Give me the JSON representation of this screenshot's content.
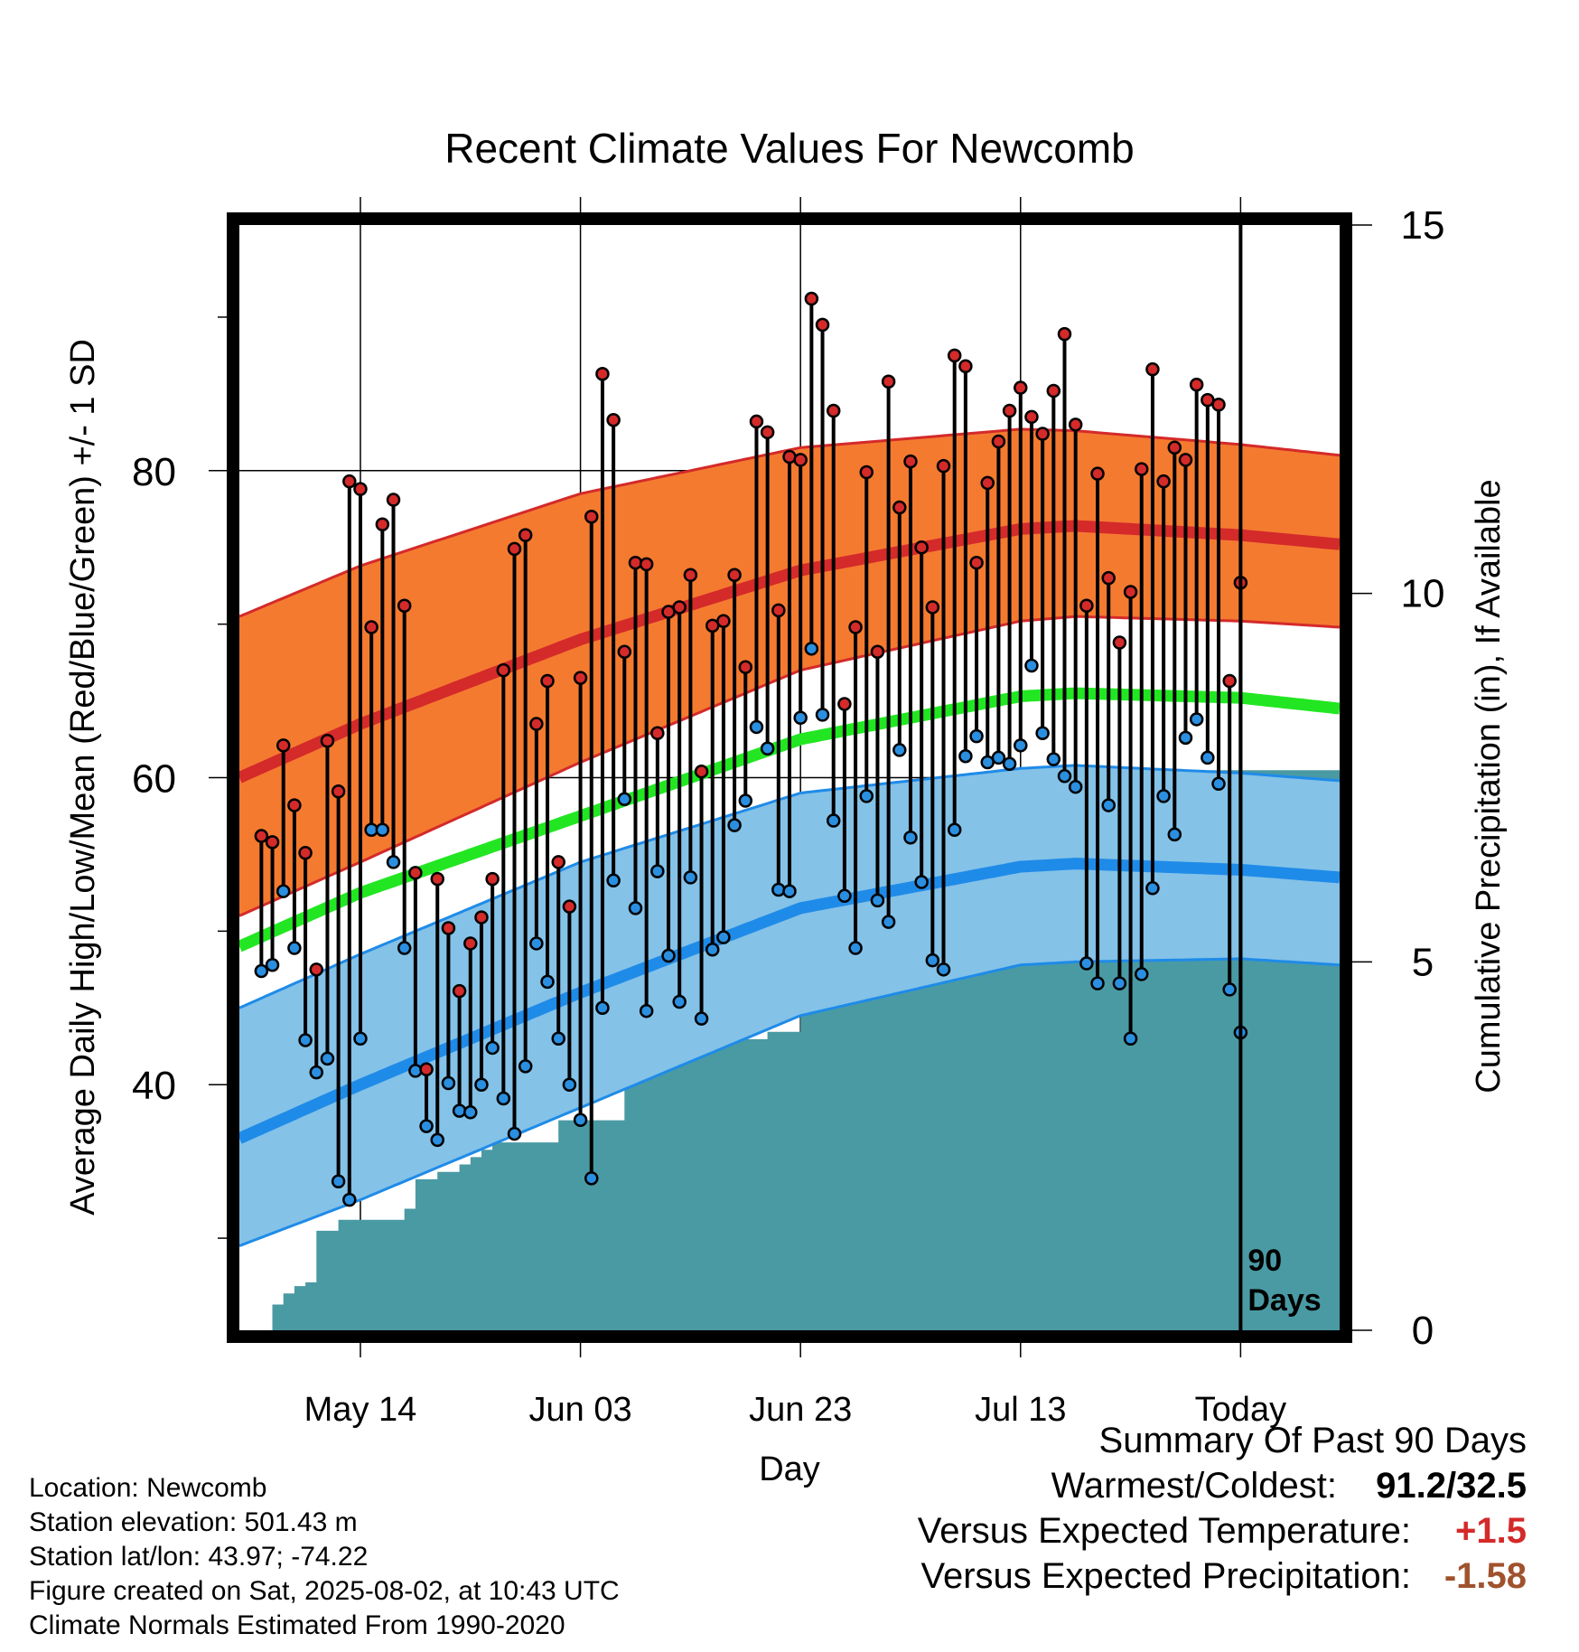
{
  "chart_data": {
    "type": "line",
    "title": "Recent Climate Values For Newcomb",
    "xlabel": "Day",
    "ylabel_left": "Average Daily High/Low/Mean (Red/Blue/Green) +/- 1 SD",
    "ylabel_right": "Cumulative Precipitation (in), If Available",
    "x_ticks": [
      "May 14",
      "Jun 03",
      "Jun 23",
      "Jul 13",
      "Today"
    ],
    "x_range_days": [
      -91,
      9
    ],
    "x_tick_days": [
      -80,
      -60,
      -40,
      -20,
      0
    ],
    "left_axis": {
      "ylim": [
        24,
        96
      ],
      "ticks": [
        40,
        60,
        80
      ]
    },
    "right_axis": {
      "ylim": [
        0,
        15
      ],
      "ticks": [
        0,
        5,
        10,
        15
      ]
    },
    "today_marker_label": [
      "90",
      "Days"
    ],
    "colors": {
      "high_band": "#f47a30",
      "high_mean": "#d42a2a",
      "low_band": "#84c2e8",
      "low_mean": "#1f8be8",
      "daily_mean": "#22e622",
      "precip": "#4a9aa4",
      "high_dot": "#d42a2a",
      "low_dot": "#2a8fe0"
    },
    "normals": {
      "day": [
        -91,
        -80,
        -60,
        -40,
        -20,
        -15,
        0,
        9
      ],
      "high_mean": [
        60.0,
        63.5,
        69.0,
        73.5,
        76.2,
        76.4,
        75.8,
        75.2
      ],
      "high_sd_upper": [
        70.5,
        73.8,
        78.5,
        81.5,
        82.7,
        82.6,
        81.7,
        81.0
      ],
      "high_sd_lower": [
        51.0,
        54.5,
        61.0,
        67.0,
        70.2,
        70.5,
        70.2,
        69.8
      ],
      "daily_mean": [
        49.0,
        52.5,
        57.5,
        62.5,
        65.3,
        65.5,
        65.2,
        64.5
      ],
      "low_mean": [
        36.5,
        40.0,
        46.0,
        51.5,
        54.2,
        54.4,
        54.0,
        53.5
      ],
      "low_sd_upper": [
        45.0,
        48.5,
        54.5,
        59.0,
        60.6,
        60.8,
        60.3,
        59.8
      ],
      "low_sd_lower": [
        29.5,
        32.5,
        38.5,
        44.5,
        47.8,
        48.0,
        48.2,
        47.8
      ]
    },
    "daily_high": [
      56.2,
      55.8,
      62.1,
      58.2,
      55.1,
      47.5,
      62.4,
      59.1,
      79.3,
      78.8,
      69.8,
      76.5,
      78.1,
      71.2,
      53.8,
      41.0,
      53.4,
      50.2,
      46.1,
      49.2,
      50.9,
      53.4,
      67.0,
      74.9,
      75.8,
      63.5,
      66.3,
      54.5,
      51.6,
      66.5,
      77.0,
      86.3,
      83.3,
      68.2,
      74.0,
      73.9,
      62.9,
      70.8,
      71.1,
      73.2,
      60.4,
      69.9,
      70.2,
      73.2,
      67.2,
      83.2,
      82.5,
      70.9,
      80.9,
      80.7,
      91.2,
      89.5,
      83.9,
      64.8,
      69.8,
      79.9,
      68.2,
      85.8,
      77.6,
      80.6,
      75.0,
      71.1,
      80.3,
      87.5,
      86.8,
      74.0,
      79.2,
      81.9,
      83.9,
      85.4,
      83.5,
      82.4,
      85.2,
      88.9,
      83.0,
      71.2,
      79.8,
      73.0,
      68.8,
      72.1,
      80.1,
      86.6,
      79.3,
      81.5,
      80.7,
      85.6,
      84.6,
      84.3,
      66.3,
      72.7
    ],
    "daily_low": [
      47.4,
      47.8,
      52.6,
      48.9,
      42.9,
      40.8,
      41.7,
      33.7,
      32.5,
      43.0,
      56.6,
      56.6,
      54.5,
      48.9,
      40.9,
      37.3,
      36.4,
      40.1,
      38.3,
      38.2,
      40.0,
      42.4,
      39.1,
      36.8,
      41.2,
      49.2,
      46.7,
      43.0,
      40.0,
      37.7,
      33.9,
      45.0,
      53.3,
      58.6,
      51.5,
      44.8,
      53.9,
      48.4,
      45.4,
      53.5,
      44.3,
      48.8,
      49.6,
      56.9,
      58.5,
      63.3,
      61.9,
      52.7,
      52.6,
      63.9,
      68.4,
      64.1,
      57.2,
      52.3,
      48.9,
      58.8,
      52.0,
      50.6,
      61.8,
      56.1,
      53.2,
      48.1,
      47.5,
      56.6,
      61.4,
      62.7,
      61.0,
      61.3,
      60.9,
      62.1,
      67.3,
      62.9,
      61.2,
      60.1,
      59.4,
      47.9,
      46.6,
      58.2,
      46.6,
      43.0,
      47.2,
      52.8,
      58.8,
      56.3,
      62.6,
      63.8,
      61.3,
      59.6,
      46.2,
      43.4
    ],
    "cumulative_precip": [
      0.0,
      0.0,
      0.35,
      0.5,
      0.6,
      0.65,
      1.35,
      1.35,
      1.5,
      1.5,
      1.5,
      1.5,
      1.5,
      1.5,
      1.65,
      2.05,
      2.05,
      2.15,
      2.15,
      2.25,
      2.35,
      2.45,
      2.55,
      2.55,
      2.55,
      2.55,
      2.55,
      2.55,
      2.85,
      2.85,
      2.85,
      2.85,
      2.85,
      2.85,
      3.5,
      3.5,
      3.5,
      3.65,
      3.65,
      3.85,
      3.95,
      3.95,
      3.95,
      3.95,
      3.95,
      3.95,
      3.95,
      4.05,
      4.05,
      4.05,
      4.85,
      4.85,
      4.85,
      4.85,
      4.85,
      4.85,
      4.85,
      4.85,
      5.1,
      5.1,
      5.1,
      5.3,
      5.3,
      5.3,
      5.3,
      6.15,
      6.15,
      6.15,
      6.15,
      6.15,
      6.35,
      6.35,
      6.35,
      6.35,
      6.35,
      6.35,
      7.25,
      7.25,
      7.25,
      7.25,
      7.25,
      7.25,
      7.25,
      7.25,
      7.5,
      7.5,
      7.6,
      7.6,
      7.6,
      7.6,
      7.6
    ]
  },
  "info": {
    "location": "Location: Newcomb",
    "elevation": "Station elevation: 501.43 m",
    "latlon": "Station lat/lon: 43.97; -74.22",
    "created": "Figure created on Sat, 2025-08-02, at 10:43 UTC",
    "normals": "Climate Normals Estimated From 1990-2020"
  },
  "summary": {
    "title": "Summary Of Past 90 Days",
    "warmest_label": "Warmest/Coldest:",
    "warmest_value": "91.2/32.5",
    "temp_label": "Versus Expected Temperature:",
    "temp_value": "+1.5",
    "temp_color": "#d42a2a",
    "precip_label": "Versus Expected Precipitation:",
    "precip_value": "-1.58",
    "precip_color": "#a0522d"
  }
}
